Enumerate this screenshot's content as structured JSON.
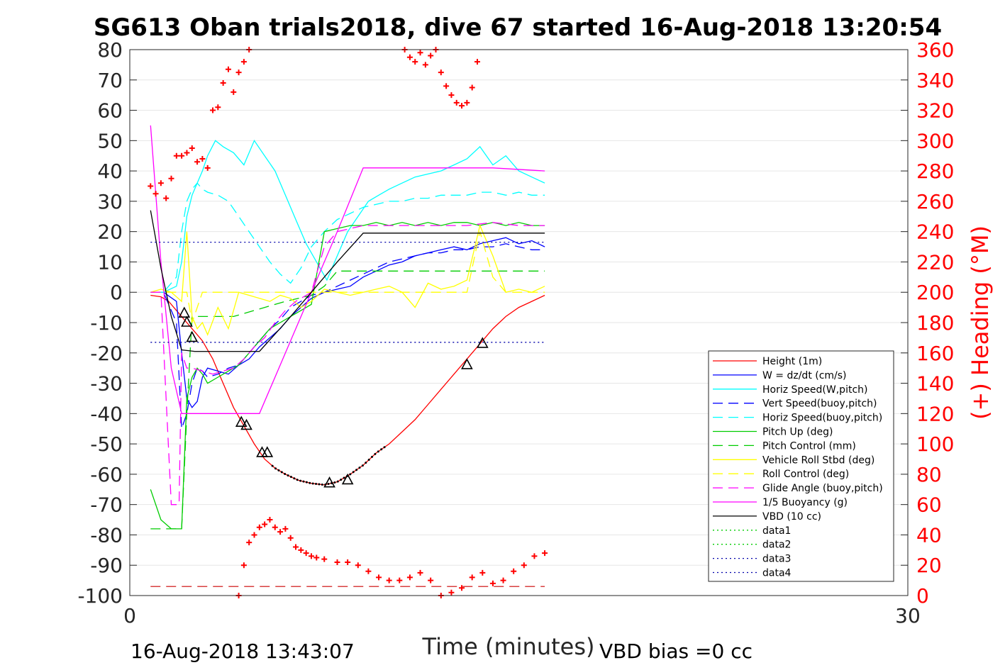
{
  "chart_data": {
    "type": "line",
    "title": "SG613 Oban trials2018, dive 67 started 16-Aug-2018 13:20:54",
    "xlabel": "Time (minutes)",
    "ylabel_right": "(+) Heading (°M)",
    "footer_left": "16-Aug-2018 13:43:07",
    "footer_right": "VBD bias =0 cc",
    "xlim": [
      0,
      30
    ],
    "ylim": [
      -100,
      80
    ],
    "ylim_right": [
      0,
      360
    ],
    "x_ticks": [
      "0",
      "30"
    ],
    "y_ticks": [
      "80",
      "70",
      "60",
      "50",
      "40",
      "30",
      "20",
      "10",
      "0",
      "-10",
      "-20",
      "-30",
      "-40",
      "-50",
      "-60",
      "-70",
      "-80",
      "-90",
      "-100"
    ],
    "y_ticks_right": [
      "360",
      "340",
      "320",
      "300",
      "280",
      "260",
      "240",
      "220",
      "200",
      "180",
      "160",
      "140",
      "120",
      "100",
      "80",
      "60",
      "40",
      "20",
      "0"
    ],
    "grid": true,
    "legend_position": "lower-right",
    "colors": {
      "heading_axis": "#ff0000",
      "height": "#ff0000",
      "w": "#0000ff",
      "horiz": "#00ffff",
      "pitch": "#00cc00",
      "roll": "#ffff00",
      "buoy": "#ff00ff",
      "vbd": "#000000",
      "data3": "#0000aa"
    },
    "series": [
      {
        "name": "Height (1m)",
        "style": "solid",
        "color": "#ff0000",
        "x": [
          0.8,
          1.2,
          1.5,
          1.8,
          2.2,
          2.5,
          2.8,
          3.2,
          3.6,
          4.0,
          4.4,
          4.8,
          5.2,
          5.6,
          6.0,
          6.5,
          7.0,
          7.5,
          8.0,
          8.5,
          9.0,
          9.5,
          10.0,
          10.5,
          11.0,
          11.5,
          12.0,
          12.5,
          13.0,
          13.5,
          14.0,
          14.5,
          15.0,
          15.5,
          16.0
        ],
        "y": [
          -1,
          -1.5,
          -3,
          -6,
          -10,
          -13,
          -16,
          -22,
          -30,
          -38,
          -44,
          -50,
          -55,
          -58,
          -60,
          -62,
          -63,
          -63.5,
          -62.5,
          -60,
          -57,
          -53,
          -50,
          -46,
          -42,
          -37,
          -32,
          -27,
          -22,
          -17,
          -12,
          -8,
          -5,
          -3,
          -1
        ]
      },
      {
        "name": "W = dz/dt (cm/s)",
        "style": "solid",
        "color": "#0000ff",
        "x": [
          0.8,
          1.3,
          1.8,
          2.0,
          2.2,
          2.4,
          2.6,
          2.8,
          3.0,
          3.4,
          3.8,
          4.2,
          4.6,
          5.0,
          5.4,
          5.8,
          6.2,
          6.6,
          7.0,
          7.5,
          8.0,
          8.5,
          9.0,
          9.5,
          10.0,
          10.5,
          11.0,
          11.5,
          12.0,
          12.5,
          13.0,
          13.5,
          14.0,
          14.5,
          15.0,
          15.5,
          16.0
        ],
        "y": [
          0,
          0,
          -3,
          -20,
          -35,
          -38,
          -36,
          -28,
          -25,
          -26,
          -27,
          -24,
          -22,
          -18,
          -15,
          -12,
          -8,
          -5,
          -2,
          0,
          1,
          2,
          5,
          7,
          9,
          10,
          12,
          13,
          14,
          15,
          14,
          16,
          17,
          18,
          16,
          17,
          15
        ]
      },
      {
        "name": "Horiz Speed(W,pitch)",
        "style": "solid",
        "color": "#00ffff",
        "x": [
          0.8,
          1.3,
          1.8,
          2.0,
          2.2,
          2.4,
          2.6,
          2.8,
          3.0,
          3.3,
          3.6,
          4.0,
          4.4,
          4.8,
          5.2,
          5.6,
          6.0,
          6.4,
          6.8,
          7.2,
          7.6,
          8.0,
          8.4,
          8.8,
          9.2,
          9.6,
          10.0,
          10.5,
          11.0,
          11.5,
          12.0,
          12.5,
          13.0,
          13.5,
          14.0,
          14.5,
          15.0,
          15.5,
          16.0
        ],
        "y": [
          0,
          0,
          2,
          10,
          25,
          32,
          36,
          40,
          45,
          50,
          48,
          46,
          42,
          50,
          45,
          40,
          32,
          24,
          16,
          10,
          4,
          12,
          20,
          25,
          30,
          32,
          34,
          36,
          38,
          39,
          40,
          42,
          44,
          48,
          42,
          45,
          40,
          38,
          36
        ]
      },
      {
        "name": "Vert Speed(buoy,pitch)",
        "style": "dashed",
        "color": "#0000ff",
        "x": [
          0.8,
          1.3,
          1.8,
          2.0,
          2.2,
          2.4,
          2.6,
          2.8,
          3.0,
          3.4,
          3.8,
          4.2,
          4.6,
          5.0,
          5.4,
          5.8,
          6.2,
          6.6,
          7.0,
          7.5,
          8.0,
          8.5,
          9.0,
          9.5,
          10.0,
          10.5,
          11.0,
          11.5,
          12.0,
          12.5,
          13.0,
          13.5,
          14.0,
          14.5,
          15.0,
          15.5,
          16.0
        ],
        "y": [
          0,
          0,
          -10,
          -45,
          -40,
          -30,
          -25,
          -26,
          -28,
          -27,
          -25,
          -24,
          -20,
          -16,
          -12,
          -9,
          -5,
          -3,
          -1,
          0,
          2,
          4,
          6,
          8,
          10,
          11,
          12,
          13,
          13,
          14,
          14,
          15,
          15,
          16,
          15,
          14,
          14
        ]
      },
      {
        "name": "Horiz Speed(buoy,pitch)",
        "style": "dashed",
        "color": "#00ffff",
        "x": [
          0.8,
          1.3,
          1.8,
          2.0,
          2.2,
          2.4,
          2.6,
          2.8,
          3.0,
          3.4,
          3.8,
          4.2,
          4.6,
          5.0,
          5.4,
          5.8,
          6.2,
          6.6,
          7.0,
          7.5,
          8.0,
          8.5,
          9.0,
          9.5,
          10.0,
          10.5,
          11.0,
          11.5,
          12.0,
          12.5,
          13.0,
          13.5,
          14.0,
          14.5,
          15.0,
          15.5,
          16.0
        ],
        "y": [
          0,
          0,
          5,
          20,
          30,
          34,
          36,
          34,
          33,
          32,
          30,
          25,
          20,
          15,
          10,
          6,
          3,
          8,
          15,
          20,
          24,
          26,
          28,
          29,
          30,
          30,
          31,
          31,
          32,
          32,
          32,
          33,
          33,
          32,
          33,
          32,
          32
        ]
      },
      {
        "name": "Pitch Up (deg)",
        "style": "solid",
        "color": "#00cc00",
        "x": [
          0.8,
          1.2,
          1.6,
          2.0,
          2.2,
          2.4,
          2.6,
          2.8,
          3.0,
          3.4,
          3.8,
          4.2,
          4.6,
          5.0,
          5.4,
          5.8,
          6.2,
          6.6,
          7.0,
          7.5,
          8.0,
          8.5,
          9.0,
          9.5,
          10.0,
          10.5,
          11.0,
          11.5,
          12.0,
          12.5,
          13.0,
          13.5,
          14.0,
          14.5,
          15.0,
          15.5,
          16.0
        ],
        "y": [
          -65,
          -75,
          -78,
          -78,
          -35,
          -28,
          -25,
          -27,
          -30,
          -28,
          -26,
          -24,
          -20,
          -16,
          -12,
          -10,
          -8,
          -6,
          -4,
          20,
          21,
          22,
          22,
          23,
          22,
          23,
          22,
          23,
          22,
          23,
          23,
          22,
          23,
          22,
          23,
          22,
          22
        ]
      },
      {
        "name": "Pitch Control (mm)",
        "style": "dashed",
        "color": "#00cc00",
        "x": [
          0.8,
          1.5,
          2.0,
          2.2,
          2.4,
          2.8,
          4.0,
          6.0,
          7.0,
          7.5,
          8.0,
          9.0,
          10.0,
          12.0,
          14.0,
          16.0
        ],
        "y": [
          -78,
          -78,
          -78,
          -40,
          -8,
          -8,
          -8,
          -3,
          -1,
          2,
          7,
          7,
          7,
          7,
          7,
          7
        ]
      },
      {
        "name": "Vehicle Roll Stbd (deg)",
        "style": "solid",
        "color": "#ffff00",
        "x": [
          0.8,
          1.2,
          1.6,
          2.0,
          2.2,
          2.4,
          2.6,
          2.8,
          3.0,
          3.4,
          3.8,
          4.2,
          4.6,
          5.0,
          5.4,
          5.8,
          6.2,
          6.6,
          7.0,
          7.5,
          8.0,
          8.5,
          9.0,
          9.5,
          10.0,
          10.5,
          11.0,
          11.5,
          12.0,
          12.5,
          13.0,
          13.5,
          14.0,
          14.5,
          15.0,
          15.5,
          16.0
        ],
        "y": [
          0,
          1,
          0,
          -3,
          20,
          -8,
          -12,
          -10,
          -14,
          -5,
          -12,
          0,
          -1,
          -2,
          -3,
          -1,
          -2,
          -5,
          -3,
          1,
          0,
          -1,
          0,
          1,
          2,
          0,
          -5,
          3,
          1,
          2,
          4,
          22,
          12,
          0,
          1,
          0,
          2
        ]
      },
      {
        "name": "Roll Control (deg)",
        "style": "dashed",
        "color": "#ffff00",
        "x": [
          0.8,
          1.5,
          2.0,
          2.2,
          2.4,
          2.8,
          4.0,
          6.0,
          8.0,
          10.0,
          12.0,
          13.0,
          13.5,
          14.0,
          14.5,
          16.0
        ],
        "y": [
          0,
          0,
          0,
          0,
          -10,
          0,
          0,
          0,
          0,
          0,
          0,
          0,
          20,
          5,
          0,
          0
        ]
      },
      {
        "name": "Glide Angle (buoy,pitch)",
        "style": "dashed",
        "color": "#ff00ff",
        "x": [
          0.8,
          1.2,
          1.6,
          1.9,
          2.0,
          2.2,
          2.4,
          2.8,
          3.2,
          3.6,
          4.0,
          4.4,
          4.8,
          5.2,
          5.6,
          6.0,
          6.4,
          6.8,
          7.0,
          7.5,
          8.0,
          8.5,
          9.0,
          10.0,
          11.0,
          12.0,
          13.0,
          14.0,
          15.0,
          16.0
        ],
        "y": [
          0,
          0,
          -70,
          -70,
          -20,
          -25,
          -25,
          -26,
          -27,
          -26,
          -25,
          -22,
          -18,
          -15,
          -10,
          -6,
          -3,
          -1,
          0,
          15,
          20,
          21,
          22,
          22,
          22,
          22,
          22,
          23,
          22,
          22
        ]
      },
      {
        "name": "1/5 Buoyancy (g)",
        "style": "solid",
        "color": "#ff00ff",
        "x": [
          0.8,
          1.2,
          1.6,
          2.0,
          2.5,
          3.0,
          5.0,
          6.0,
          7.0,
          8.0,
          9.0,
          10.0,
          12.0,
          14.0,
          16.0
        ],
        "y": [
          55,
          10,
          -25,
          -40,
          -40,
          -40,
          -40,
          -20,
          0,
          20,
          41,
          41,
          41,
          41,
          40
        ]
      },
      {
        "name": "VBD (10 cc)",
        "style": "solid",
        "color": "#000000",
        "x": [
          0.8,
          1.2,
          1.6,
          2.0,
          2.5,
          3.0,
          5.0,
          6.0,
          7.0,
          8.0,
          9.0,
          10.0,
          12.0,
          14.0,
          16.0
        ],
        "y": [
          27,
          8,
          -8,
          -19,
          -19.5,
          -19.5,
          -19.5,
          -10,
          0,
          10,
          19.5,
          19.5,
          19.5,
          19.5,
          19.5
        ]
      },
      {
        "name": "data1",
        "style": "dotted",
        "color": "#00cc00",
        "x": [],
        "y": []
      },
      {
        "name": "data2",
        "style": "dotted",
        "color": "#00cc00",
        "x": [],
        "y": []
      },
      {
        "name": "data3",
        "style": "dotted",
        "color": "#0000aa",
        "x": [
          0.8,
          16.0
        ],
        "y": [
          16.5,
          16.5
        ]
      },
      {
        "name": "data4",
        "style": "dotted",
        "color": "#0000aa",
        "x": [
          0.8,
          16.0
        ],
        "y": [
          -16.5,
          -16.5
        ]
      }
    ],
    "heading": {
      "marker": "+",
      "color": "#ff0000",
      "x": [
        0.8,
        1.0,
        1.2,
        1.4,
        1.6,
        1.8,
        2.0,
        2.2,
        2.4,
        2.6,
        2.8,
        3.0,
        3.2,
        3.4,
        3.6,
        3.8,
        4.0,
        4.2,
        4.4,
        4.6,
        10.6,
        10.8,
        11.0,
        11.2,
        11.4,
        11.6,
        11.8,
        12.0,
        12.2,
        12.4,
        12.6,
        12.8,
        13.0,
        13.2,
        13.4,
        4.2,
        4.4,
        4.6,
        4.8,
        5.0,
        5.2,
        5.4,
        5.6,
        5.8,
        6.0,
        6.2,
        6.4,
        6.6,
        6.8,
        7.0,
        7.2,
        7.5,
        8.0,
        8.4,
        8.8,
        9.2,
        9.6,
        10.0,
        10.4,
        10.8,
        11.2,
        11.6,
        12.0,
        12.4,
        12.8,
        13.2,
        13.6,
        14.0,
        14.4,
        14.8,
        15.2,
        15.6,
        16.0
      ],
      "y": [
        270,
        265,
        272,
        262,
        275,
        290,
        290,
        292,
        295,
        286,
        288,
        282,
        320,
        322,
        338,
        347,
        332,
        345,
        352,
        360,
        360,
        355,
        352,
        358,
        350,
        356,
        360,
        345,
        336,
        330,
        325,
        323,
        325,
        335,
        352,
        0,
        20,
        35,
        40,
        45,
        47,
        50,
        45,
        42,
        44,
        38,
        32,
        30,
        28,
        26,
        25,
        24,
        22,
        22,
        20,
        16,
        12,
        10,
        10,
        12,
        15,
        10,
        0,
        2,
        5,
        12,
        15,
        8,
        10,
        16,
        20,
        26,
        28
      ]
    },
    "annotations": {
      "triangles": [
        {
          "x": 2.1,
          "y": -7
        },
        {
          "x": 2.2,
          "y": -10
        },
        {
          "x": 2.4,
          "y": -15
        },
        {
          "x": 4.3,
          "y": -43
        },
        {
          "x": 4.5,
          "y": -44
        },
        {
          "x": 5.1,
          "y": -53
        },
        {
          "x": 5.3,
          "y": -53
        },
        {
          "x": 7.7,
          "y": -63
        },
        {
          "x": 8.4,
          "y": -62
        },
        {
          "x": 13.0,
          "y": -24
        },
        {
          "x": 13.6,
          "y": -17
        }
      ],
      "dots": {
        "x_start": 5.5,
        "x_end": 9.9
      }
    }
  }
}
